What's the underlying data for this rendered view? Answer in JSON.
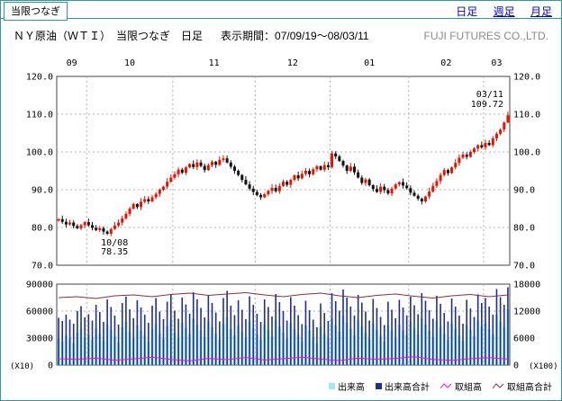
{
  "page": {
    "tab_label": "当限つなぎ",
    "period_links": [
      {
        "label": "日足",
        "active": true
      },
      {
        "label": "週足",
        "active": false
      },
      {
        "label": "月足",
        "active": false
      }
    ],
    "header": {
      "title": "ＮＹ原油（ＷＴＩ）　当限つなぎ　日足",
      "period": "表示期間：07/09/19～08/03/11",
      "company": "FUJI FUTURES CO.,LTD."
    }
  },
  "colors": {
    "teal": "#2f9a9a",
    "link": "#0000cc",
    "up": "#ee1100",
    "down": "#111111",
    "grid": "#b0b0b0",
    "panel_border": "#444444",
    "volume": "#9fe8f5",
    "volume_total": "#1f2f8f",
    "open_interest": "#ff00ff",
    "open_interest_total": "#8b3038",
    "company_text": "#8a8a8a"
  },
  "chart_data": {
    "type": "candlestick+volume",
    "title": "ＮＹ原油（ＷＴＩ） 当限つなぎ 日足",
    "period": "07/09/19～08/03/11",
    "price_axis": {
      "min": 70,
      "max": 120,
      "ticks": [
        {
          "v": 120,
          "label": "120.0"
        },
        {
          "v": 110,
          "label": "110.0"
        },
        {
          "v": 100,
          "label": "100.0"
        },
        {
          "v": 90,
          "label": "90.0"
        },
        {
          "v": 80,
          "label": "80.0"
        },
        {
          "v": 70,
          "label": "70.0"
        }
      ]
    },
    "volume_axis_left": {
      "min": 0,
      "max": 90000,
      "unit": "(X10)",
      "ticks": [
        {
          "v": 90000,
          "label": "90000"
        },
        {
          "v": 60000,
          "label": "60000"
        },
        {
          "v": 30000,
          "label": "30000"
        },
        {
          "v": 0,
          "label": "0"
        }
      ]
    },
    "volume_axis_right": {
      "min": 0,
      "max": 18000,
      "unit": "(X100)",
      "ticks": [
        {
          "v": 18000,
          "label": "18000"
        },
        {
          "v": 12000,
          "label": "12000"
        },
        {
          "v": 6000,
          "label": "6000"
        },
        {
          "v": 0,
          "label": "0"
        }
      ]
    },
    "months": [
      {
        "label": "09",
        "start": 0
      },
      {
        "label": "10",
        "start": 8
      },
      {
        "label": "11",
        "start": 31
      },
      {
        "label": "12",
        "start": 53
      },
      {
        "label": "01",
        "start": 73
      },
      {
        "label": "02",
        "start": 94
      },
      {
        "label": "03",
        "start": 114
      }
    ],
    "annotations": [
      {
        "index": 13,
        "value": 78.35,
        "lines": [
          "10/08",
          "78.35"
        ],
        "placement": "below"
      },
      {
        "index": 120,
        "value": 109.72,
        "lines": [
          "03/11",
          "109.72"
        ],
        "placement": "above"
      }
    ],
    "first_open": 81.8,
    "closes": [
      82.2,
      81.5,
      80.8,
      81.3,
      80.4,
      79.8,
      80.6,
      81.4,
      80.6,
      79.9,
      79.3,
      79.8,
      78.9,
      78.35,
      79.6,
      80.5,
      81.3,
      82.4,
      83.6,
      85.0,
      86.2,
      85.4,
      86.8,
      87.5,
      86.9,
      88.0,
      88.9,
      90.0,
      90.8,
      92.1,
      93.2,
      94.1,
      95.3,
      94.5,
      95.9,
      96.8,
      96.0,
      97.2,
      96.3,
      95.2,
      96.5,
      97.4,
      96.6,
      97.9,
      98.3,
      97.2,
      96.1,
      95.0,
      93.9,
      92.6,
      91.4,
      90.3,
      89.4,
      88.6,
      88.0,
      88.8,
      89.7,
      90.5,
      89.6,
      91.0,
      92.1,
      91.3,
      92.6,
      93.8,
      93.0,
      94.2,
      95.0,
      94.1,
      95.4,
      96.2,
      95.3,
      96.5,
      96.0,
      99.6,
      98.8,
      97.6,
      96.4,
      95.0,
      96.1,
      94.6,
      93.2,
      91.8,
      92.7,
      91.2,
      90.2,
      89.4,
      90.8,
      89.9,
      89.0,
      90.3,
      91.4,
      92.0,
      91.1,
      90.4,
      89.2,
      88.4,
      87.6,
      86.9,
      88.2,
      89.5,
      91.0,
      92.3,
      93.9,
      95.2,
      94.4,
      95.9,
      97.1,
      98.5,
      99.3,
      98.7,
      100.0,
      100.9,
      101.8,
      101.2,
      102.4,
      101.8,
      103.6,
      104.8,
      105.9,
      107.8,
      109.7
    ],
    "volume": [
      30000,
      26000,
      33000,
      29000,
      24000,
      36000,
      40000,
      31000,
      34000,
      28000,
      41000,
      35000,
      27000,
      45000,
      39000,
      32000,
      25000,
      42000,
      48000,
      37000,
      30000,
      44000,
      38000,
      33000,
      26000,
      40000,
      46000,
      35000,
      29000,
      43000,
      50000,
      36000,
      30000,
      47000,
      41000,
      34000,
      52000,
      45000,
      38000,
      31000,
      49000,
      42000,
      35000,
      28000,
      46000,
      53000,
      40000,
      33000,
      44000,
      37000,
      30000,
      48000,
      41000,
      34000,
      28000,
      45000,
      39000,
      32000,
      50000,
      43000,
      36000,
      29000,
      47000,
      40000,
      33000,
      26000,
      44000,
      38000,
      31000,
      24000,
      42000,
      35000,
      29000,
      52000,
      44000,
      37000,
      55000,
      47000,
      40000,
      33000,
      50000,
      43000,
      36000,
      29000,
      46000,
      39000,
      32000,
      26000,
      44000,
      38000,
      31000,
      45000,
      39000,
      33000,
      48000,
      41000,
      34000,
      52000,
      45000,
      38000,
      31000,
      49000,
      42000,
      35000,
      28000,
      46000,
      40000,
      33000,
      27000,
      45000,
      39000,
      32000,
      50000,
      43000,
      47000,
      40000,
      34000,
      56000,
      48000,
      42000,
      62000
    ],
    "volume_total": [
      10500,
      9800,
      11200,
      10100,
      9200,
      12000,
      13100,
      10600,
      11300,
      9900,
      13400,
      11800,
      9600,
      14600,
      12900,
      11000,
      9000,
      13800,
      15200,
      12400,
      10400,
      14400,
      12800,
      11200,
      9400,
      13200,
      14900,
      11900,
      10200,
      14100,
      15800,
      12100,
      10300,
      15000,
      13500,
      11400,
      16200,
      14600,
      12700,
      10600,
      15500,
      13800,
      11700,
      9700,
      14900,
      16500,
      13200,
      11100,
      14400,
      12300,
      10200,
      15300,
      13400,
      11400,
      9600,
      14600,
      12900,
      10800,
      15800,
      14000,
      12000,
      9900,
      15100,
      13200,
      11100,
      9100,
      14300,
      12200,
      10100,
      8400,
      13700,
      11600,
      9800,
      16000,
      14200,
      12100,
      16800,
      15000,
      13000,
      11000,
      15600,
      13900,
      11900,
      9900,
      14700,
      12700,
      10700,
      8900,
      14100,
      12300,
      10400,
      14500,
      12800,
      11000,
      15200,
      13300,
      11300,
      16000,
      14300,
      12200,
      10300,
      15400,
      13600,
      11600,
      9700,
      14800,
      13000,
      11000,
      9200,
      14500,
      12600,
      10700,
      15700,
      13800,
      14900,
      13000,
      11200,
      16900,
      15100,
      13400,
      17300
    ],
    "open_interest_points": [
      7000,
      6200,
      7800,
      5400,
      6800,
      8800,
      6200,
      4600,
      7400,
      6000,
      8400,
      5600,
      7000,
      8800,
      6600,
      5000,
      7800,
      6200,
      7400,
      9200,
      6200,
      5200,
      7000,
      8200,
      6600
    ],
    "open_interest_total_points": [
      15000,
      15200,
      14800,
      15400,
      15600,
      15200,
      15700,
      16000,
      15500,
      15800,
      16100,
      15600,
      15200,
      15700,
      16000,
      15400,
      15000,
      15500,
      15800,
      15300,
      14900,
      15400,
      15700,
      15200,
      15600
    ],
    "legend": [
      {
        "key": "volume",
        "label": "出来高",
        "color": "#9fe8f5",
        "marker": "bar"
      },
      {
        "key": "volume-total",
        "label": "出来高合計",
        "color": "#1f2f8f",
        "marker": "bar"
      },
      {
        "key": "open-interest",
        "label": "取組高",
        "color": "#ff00ff",
        "marker": "line"
      },
      {
        "key": "open-interest-total",
        "label": "取組高合計",
        "color": "#8b3038",
        "marker": "line"
      }
    ]
  }
}
